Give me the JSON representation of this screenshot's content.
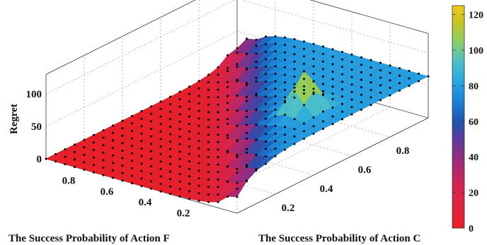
{
  "chart_data": {
    "type": "surface3d",
    "xlabel": "The Success Probability of Action F",
    "ylabel": "The Success Probability of Action C",
    "zlabel": "Regret",
    "x_ticks": [
      "0.8",
      "0.6",
      "0.4",
      "0.2"
    ],
    "x_tick_values": [
      0.8,
      0.6,
      0.4,
      0.2
    ],
    "y_ticks": [
      "0.2",
      "0.4",
      "0.6",
      "0.8"
    ],
    "y_tick_values": [
      0.2,
      0.4,
      0.6,
      0.8
    ],
    "z_ticks": [
      "0",
      "50",
      "100"
    ],
    "z_tick_values": [
      0,
      50,
      100
    ],
    "xlim": [
      0,
      1
    ],
    "ylim": [
      0,
      1
    ],
    "zlim": [
      0,
      130
    ],
    "grid": true,
    "colorbar": {
      "ticks": [
        "0",
        "20",
        "40",
        "60",
        "80",
        "100",
        "120"
      ],
      "tick_values": [
        0,
        20,
        40,
        60,
        80,
        100,
        120
      ],
      "range": [
        0,
        125
      ],
      "placement": "right"
    },
    "surface_description": {
      "region_C_below_F": {
        "regret": 0
      },
      "region_C_above_F": {
        "regret": 64
      },
      "peak": {
        "F": 0.2,
        "C": 0.55,
        "regret": 122
      }
    }
  }
}
